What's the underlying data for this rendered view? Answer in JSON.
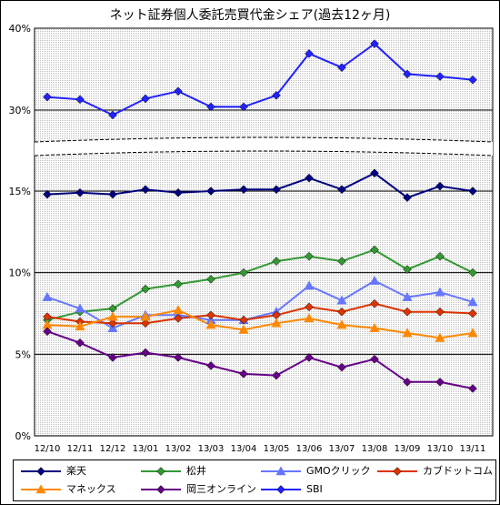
{
  "title": "ネット証券個人委託売買代金シェア(過去12ヶ月)",
  "chart_data": {
    "type": "line",
    "categories": [
      "12/10",
      "12/11",
      "12/12",
      "13/01",
      "13/02",
      "13/03",
      "13/04",
      "13/05",
      "13/06",
      "13/07",
      "13/08",
      "13/09",
      "13/10",
      "13/11"
    ],
    "ylabels_lower": [
      "0%",
      "5%",
      "10%",
      "15%"
    ],
    "ylabels_upper": [
      "30%",
      "40%"
    ],
    "axis_break": true,
    "ylim_lower": [
      0,
      15
    ],
    "ylim_upper": [
      30,
      40
    ],
    "grid": true,
    "legend_position": "bottom",
    "series": [
      {
        "name": "楽天",
        "color": "#000080",
        "marker": "diamond",
        "values": [
          14.8,
          14.9,
          14.8,
          15.1,
          14.9,
          15.0,
          15.1,
          15.1,
          15.8,
          15.1,
          16.1,
          14.6,
          15.3,
          15.0
        ]
      },
      {
        "name": "松井",
        "color": "#339933",
        "marker": "diamond",
        "values": [
          7.1,
          7.6,
          7.8,
          9.0,
          9.3,
          9.6,
          10.0,
          10.7,
          11.0,
          10.7,
          11.4,
          10.2,
          11.0,
          10.0
        ]
      },
      {
        "name": "GMOクリック",
        "color": "#6677ff",
        "marker": "triangle",
        "values": [
          8.5,
          7.8,
          6.6,
          7.4,
          7.4,
          7.1,
          7.1,
          7.6,
          9.2,
          8.3,
          9.5,
          8.5,
          8.8,
          8.2
        ]
      },
      {
        "name": "カブドットコム",
        "color": "#dd3300",
        "marker": "diamond",
        "values": [
          7.3,
          7.0,
          6.9,
          6.9,
          7.2,
          7.4,
          7.1,
          7.4,
          7.9,
          7.6,
          8.1,
          7.6,
          7.6,
          7.5
        ]
      },
      {
        "name": "マネックス",
        "color": "#ff8800",
        "marker": "triangle",
        "values": [
          6.8,
          6.7,
          7.3,
          7.3,
          7.7,
          6.8,
          6.5,
          6.9,
          7.2,
          6.8,
          6.6,
          6.3,
          6.0,
          6.3
        ]
      },
      {
        "name": "岡三オンライン",
        "color": "#660088",
        "marker": "diamond",
        "values": [
          6.4,
          5.7,
          4.8,
          5.1,
          4.8,
          4.3,
          3.8,
          3.7,
          4.8,
          4.2,
          4.7,
          3.3,
          3.3,
          2.9
        ]
      },
      {
        "name": "SBI",
        "color": "#2222ff",
        "marker": "diamond",
        "values": [
          31.6,
          31.3,
          29.4,
          31.4,
          32.3,
          30.4,
          30.4,
          31.8,
          36.9,
          35.2,
          38.1,
          34.4,
          34.1,
          33.7
        ]
      }
    ]
  }
}
